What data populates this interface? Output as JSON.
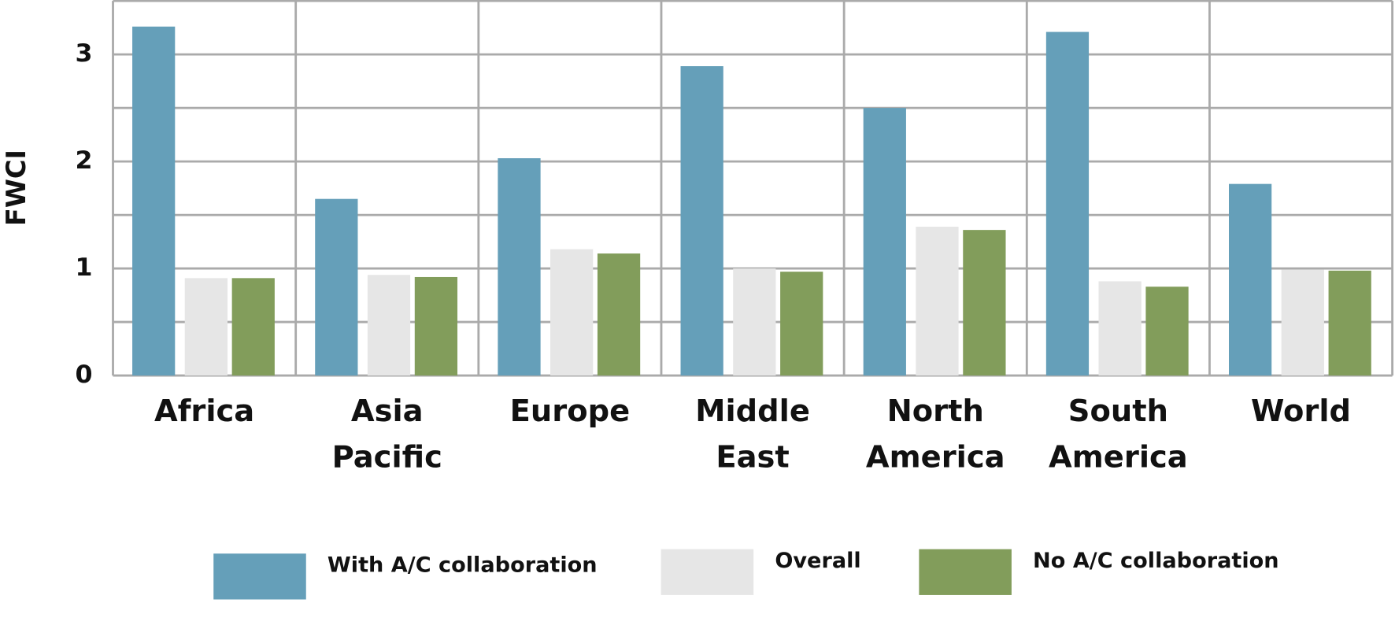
{
  "chart_data": {
    "type": "bar",
    "y_label": "FWCI",
    "categories": [
      "Africa",
      "Asia Pacific",
      "Europe",
      "Middle East",
      "North America",
      "South America",
      "World"
    ],
    "series": [
      {
        "name": "With A/C collaboration",
        "color": "#659fb9",
        "values": [
          3.26,
          1.65,
          2.03,
          2.89,
          2.5,
          3.21,
          1.79
        ]
      },
      {
        "name": "Overall",
        "color": "#e6e6e6",
        "values": [
          0.91,
          0.94,
          1.18,
          1.0,
          1.39,
          0.88,
          0.99
        ]
      },
      {
        "name": "No A/C collaboration",
        "color": "#829d5b",
        "values": [
          0.91,
          0.92,
          1.14,
          0.97,
          1.36,
          0.83,
          0.98
        ]
      }
    ],
    "ylim": [
      0,
      3.5
    ],
    "yticks": [
      0,
      1,
      2,
      3
    ],
    "minor_yticks": [
      0.5,
      1.5,
      2.5,
      3.5
    ],
    "grid": true
  }
}
